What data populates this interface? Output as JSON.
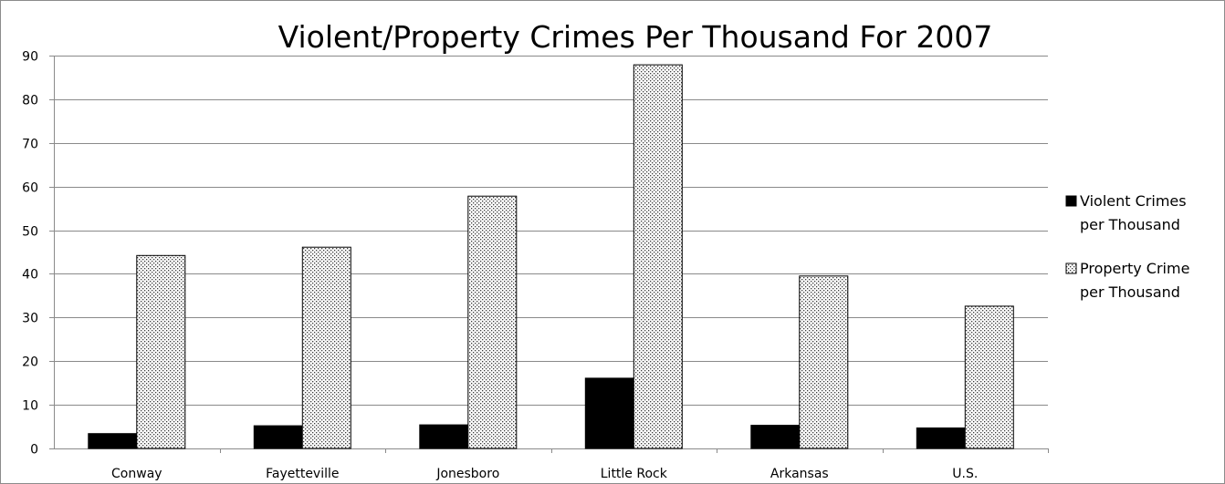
{
  "chart_data": {
    "type": "bar",
    "title": "Violent/Property Crimes Per Thousand For 2007",
    "xlabel": "",
    "ylabel": "",
    "ylim": [
      0,
      90
    ],
    "yticks": [
      0,
      10,
      20,
      30,
      40,
      50,
      60,
      70,
      80,
      90
    ],
    "grid": true,
    "legend_position": "right",
    "categories": [
      "Conway",
      "Fayetteville",
      "Jonesboro",
      "Little Rock",
      "Arkansas",
      "U.S."
    ],
    "series": [
      {
        "name": "Violent Crimes per Thousand",
        "legend_lines": [
          "Violent Crimes",
          "per Thousand"
        ],
        "fill": "solid",
        "color": "#000000",
        "values": [
          3.4,
          5.2,
          5.4,
          16.1,
          5.3,
          4.7
        ]
      },
      {
        "name": "Property Crime per Thousand",
        "legend_lines": [
          "Property Crime",
          "per Thousand"
        ],
        "fill": "dotted",
        "color": "#000000",
        "values": [
          44.2,
          46.1,
          57.8,
          87.9,
          39.5,
          32.6
        ]
      }
    ]
  }
}
